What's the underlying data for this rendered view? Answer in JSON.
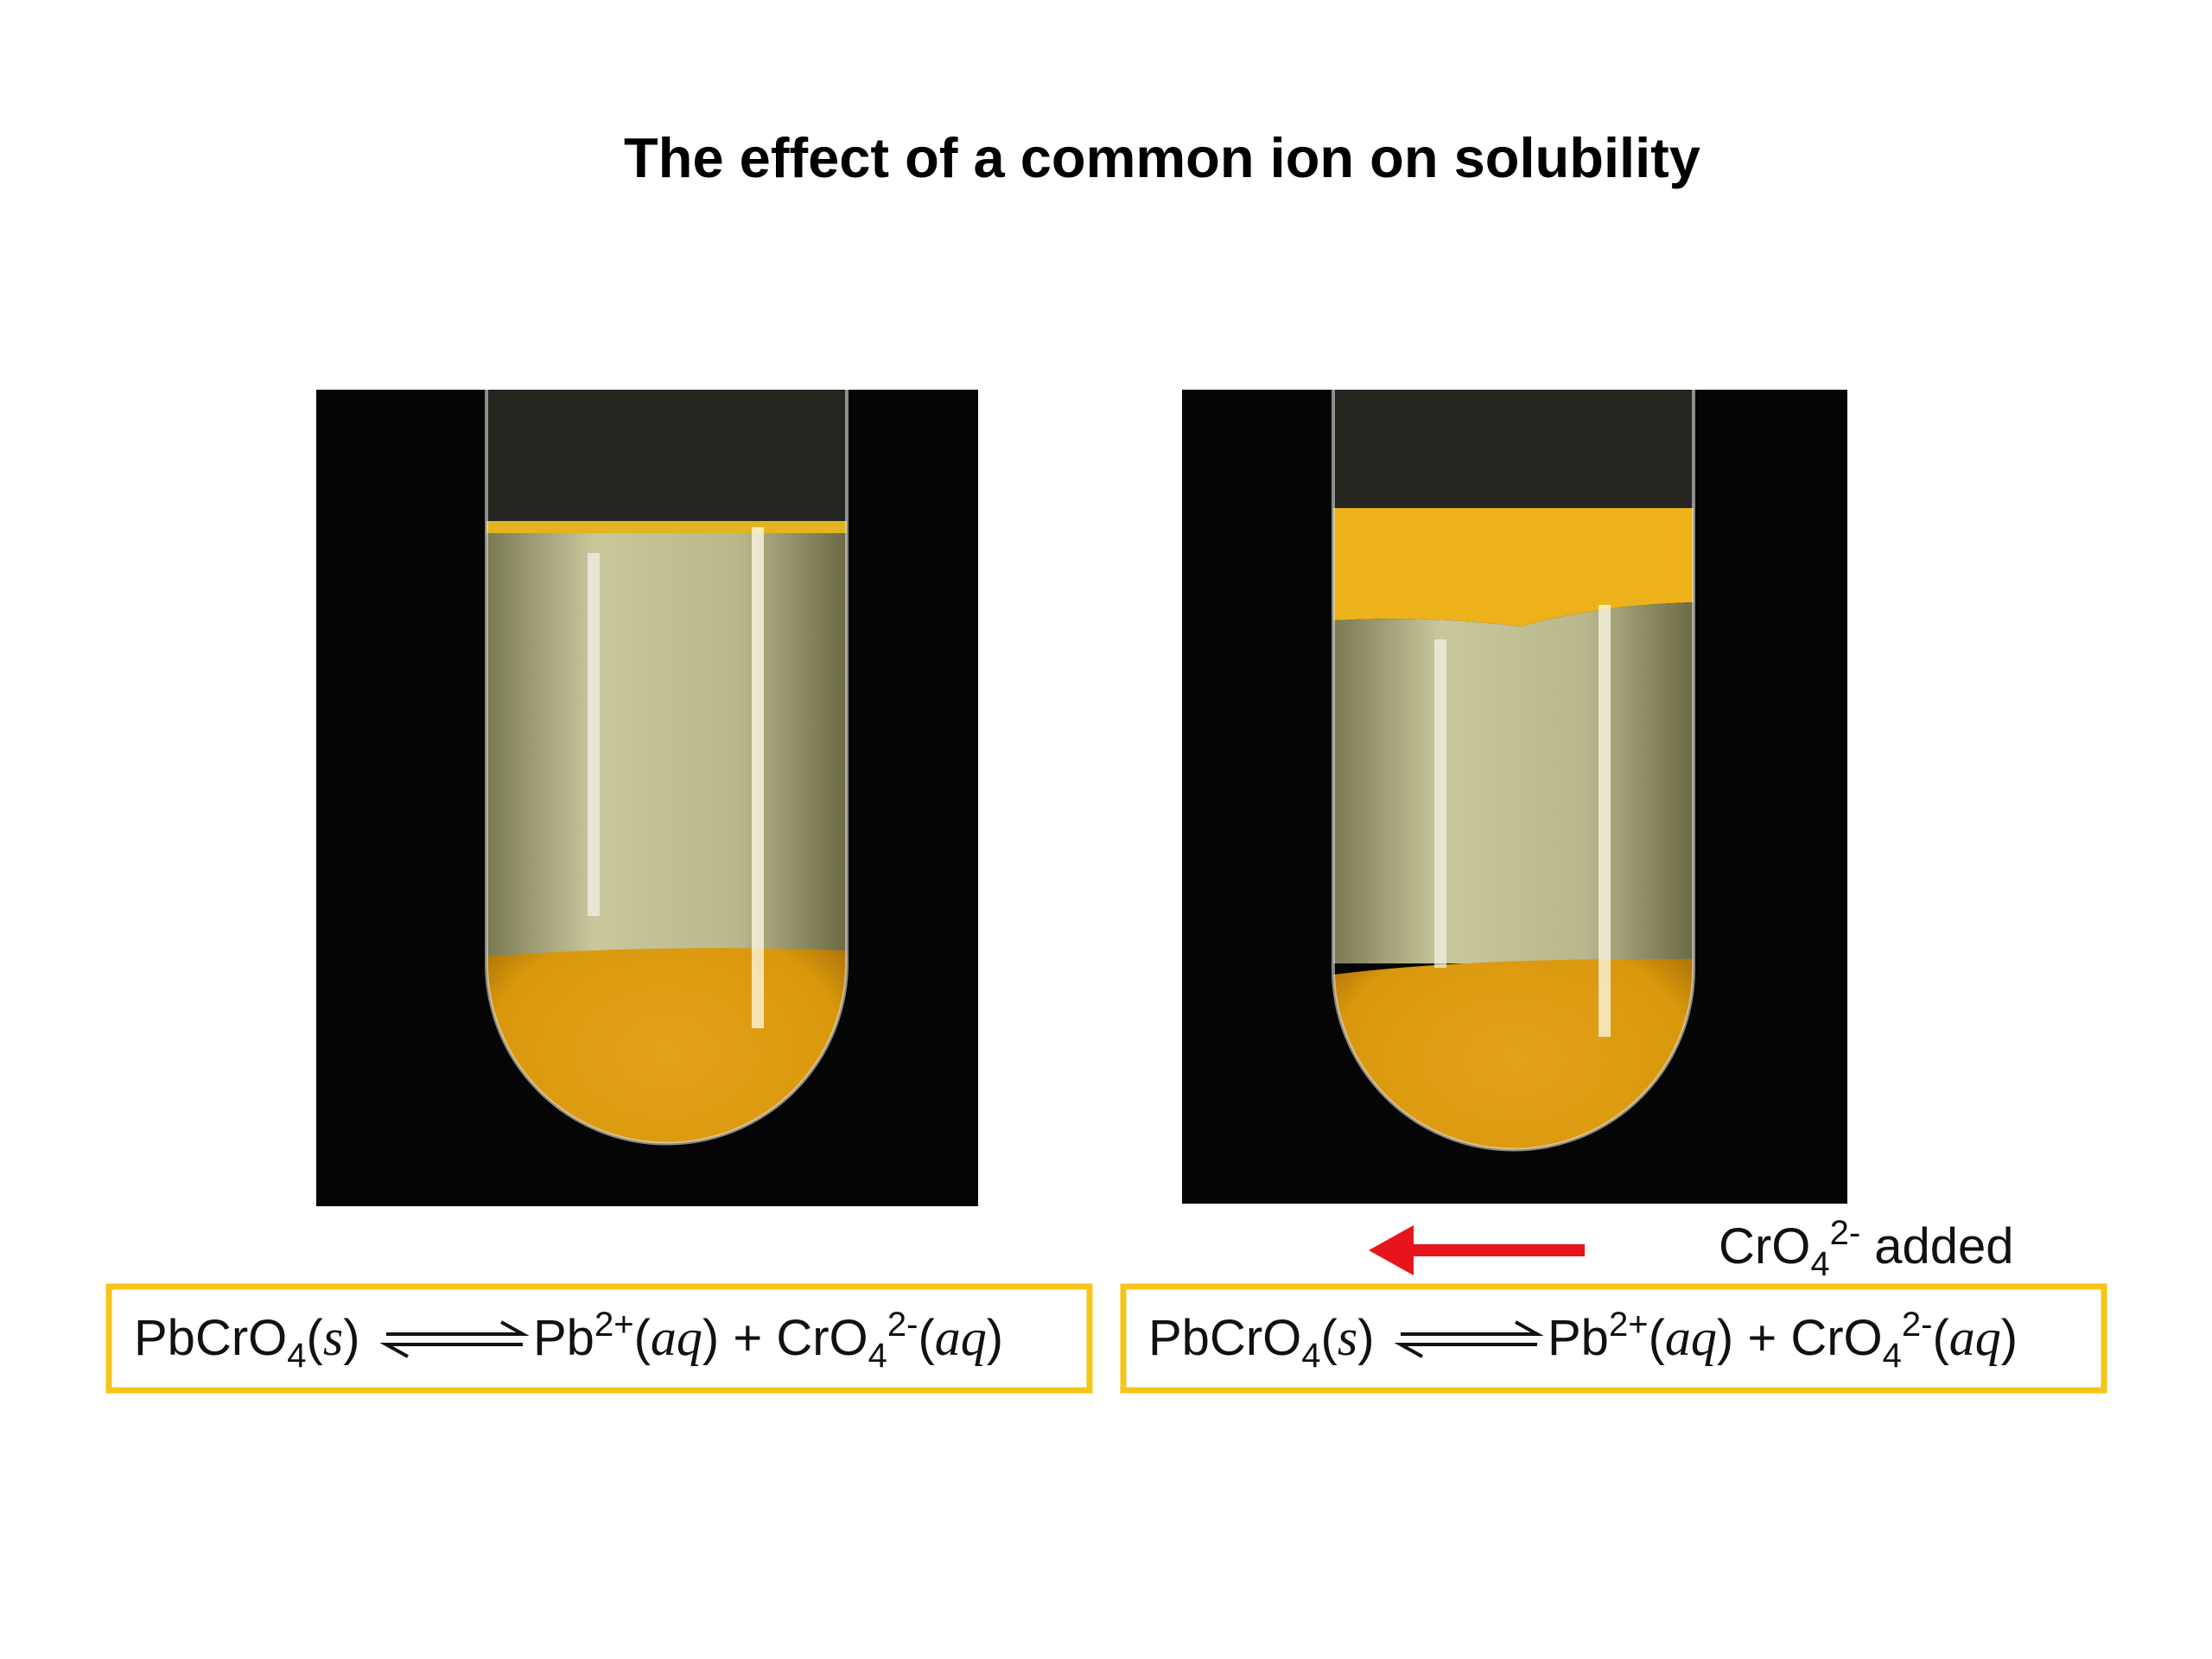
{
  "header": {
    "title": "The effect of a common ion on solubility"
  },
  "equations": [
    {
      "left": [
        "PbCrO",
        "4",
        "(",
        "s",
        ")"
      ],
      "right": [
        "Pb",
        "2+",
        "(",
        "aq",
        ")",
        " + CrO",
        "4",
        "2-",
        "(",
        "aq",
        ")"
      ]
    },
    {
      "left": [
        "PbCrO",
        "4",
        "(",
        "s",
        ")"
      ],
      "right": [
        "Pb",
        "2+",
        "(",
        "aq",
        ")",
        " + CrO",
        "4",
        "2-",
        "(",
        "aq",
        ")"
      ]
    }
  ],
  "annotation": {
    "parts": [
      "CrO",
      "4",
      "2-",
      " added"
    ]
  }
}
